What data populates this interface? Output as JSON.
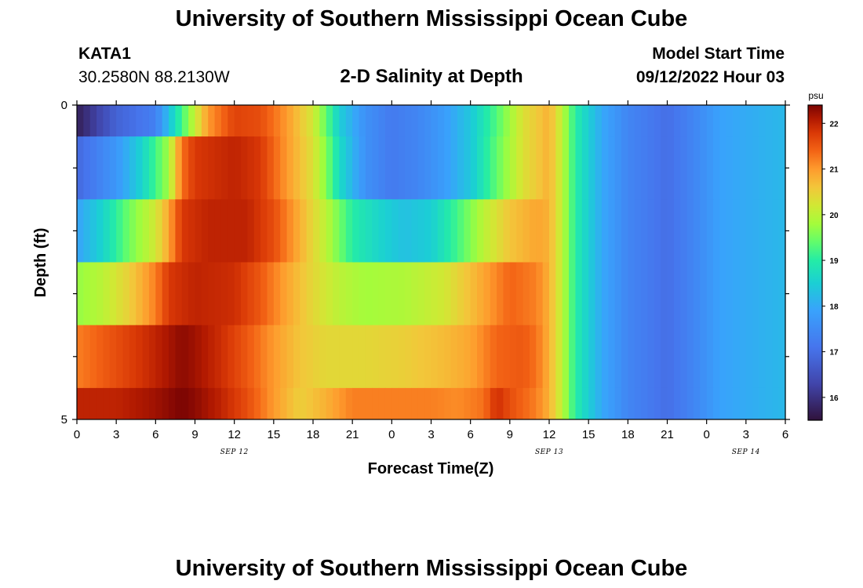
{
  "page": {
    "title_top": "University of Southern Mississippi Ocean Cube",
    "title_bottom": "University of Southern Mississippi Ocean Cube"
  },
  "header": {
    "station_id": "KATA1",
    "coordinates": "30.2580N  88.2130W",
    "plot_title": "2-D Salinity at Depth",
    "model_start_label": "Model Start Time",
    "model_start_value": "09/12/2022 Hour 03"
  },
  "chart_data": {
    "type": "heatmap",
    "title": "2-D Salinity at Depth",
    "xlabel": "Forecast Time(Z)",
    "ylabel": "Depth (ft)",
    "x_unit": "hours since 00Z Sep 12",
    "xlim": [
      0,
      54
    ],
    "ylim": [
      0,
      5
    ],
    "y_reversed": true,
    "x_ticks": [
      0,
      3,
      6,
      9,
      12,
      15,
      18,
      21,
      24,
      27,
      30,
      33,
      36,
      39,
      42,
      45,
      48,
      51,
      54
    ],
    "x_tick_labels": [
      "0",
      "3",
      "6",
      "9",
      "12",
      "15",
      "18",
      "21",
      "0",
      "3",
      "6",
      "9",
      "12",
      "15",
      "18",
      "21",
      "0",
      "3",
      "6"
    ],
    "y_tick_labels": [
      "0",
      "5"
    ],
    "date_labels": [
      {
        "text": "SEP 12",
        "x": 12
      },
      {
        "text": "SEP 13",
        "x": 36
      },
      {
        "text": "SEP 14",
        "x": 51
      }
    ],
    "colorbar": {
      "unit": "psu",
      "min": 15.5,
      "max": 22.4,
      "ticks": [
        "16",
        "17",
        "18",
        "19",
        "20",
        "21",
        "22"
      ],
      "stops": [
        [
          15.5,
          "#30123b"
        ],
        [
          16.3,
          "#4145ab"
        ],
        [
          17.1,
          "#4675ed"
        ],
        [
          17.9,
          "#39a2fc"
        ],
        [
          18.5,
          "#1bcfd4"
        ],
        [
          19.0,
          "#24eca6"
        ],
        [
          19.4,
          "#61fc6c"
        ],
        [
          19.8,
          "#a4fc3b"
        ],
        [
          20.2,
          "#d1e834"
        ],
        [
          20.6,
          "#f3c63a"
        ],
        [
          21.0,
          "#fe9b2d"
        ],
        [
          21.4,
          "#f36315"
        ],
        [
          21.8,
          "#d93806"
        ],
        [
          22.1,
          "#b11901"
        ],
        [
          22.4,
          "#7a0403"
        ]
      ]
    },
    "depth_layers": [
      {
        "depth_top": 0.0,
        "depth_bottom": 0.5,
        "knots": [
          [
            0,
            15.7
          ],
          [
            3,
            16.8
          ],
          [
            6,
            17.3
          ],
          [
            7,
            18.3
          ],
          [
            8,
            19.2
          ],
          [
            9,
            20.1
          ],
          [
            10,
            21.0
          ],
          [
            12,
            21.7
          ],
          [
            14,
            21.6
          ],
          [
            16,
            21.0
          ],
          [
            18,
            20.2
          ],
          [
            19,
            19.4
          ],
          [
            20,
            18.5
          ],
          [
            22,
            17.6
          ],
          [
            24,
            17.2
          ],
          [
            26,
            17.4
          ],
          [
            28,
            17.8
          ],
          [
            30,
            18.4
          ],
          [
            32,
            19.3
          ],
          [
            34,
            20.3
          ],
          [
            36,
            20.8
          ],
          [
            37,
            20.0
          ],
          [
            38,
            19.0
          ],
          [
            40,
            18.0
          ],
          [
            42,
            17.4
          ],
          [
            45,
            17.0
          ],
          [
            47,
            17.4
          ],
          [
            49,
            17.9
          ],
          [
            54,
            18.2
          ]
        ]
      },
      {
        "depth_top": 0.5,
        "depth_bottom": 1.5,
        "knots": [
          [
            0,
            16.9
          ],
          [
            3,
            17.7
          ],
          [
            5,
            18.6
          ],
          [
            6,
            19.2
          ],
          [
            7,
            19.8
          ],
          [
            8,
            21.3
          ],
          [
            9,
            21.8
          ],
          [
            12,
            22.0
          ],
          [
            14,
            21.8
          ],
          [
            16,
            21.0
          ],
          [
            18,
            20.3
          ],
          [
            19,
            19.6
          ],
          [
            20,
            18.7
          ],
          [
            22,
            17.6
          ],
          [
            24,
            17.2
          ],
          [
            26,
            17.4
          ],
          [
            28,
            17.8
          ],
          [
            30,
            18.4
          ],
          [
            32,
            19.4
          ],
          [
            34,
            20.3
          ],
          [
            36,
            20.8
          ],
          [
            37,
            20.0
          ],
          [
            38,
            19.0
          ],
          [
            40,
            18.0
          ],
          [
            42,
            17.4
          ],
          [
            45,
            17.0
          ],
          [
            47,
            17.4
          ],
          [
            49,
            17.9
          ],
          [
            54,
            18.2
          ]
        ]
      },
      {
        "depth_top": 1.5,
        "depth_bottom": 2.5,
        "knots": [
          [
            0,
            17.9
          ],
          [
            2,
            18.6
          ],
          [
            4,
            19.5
          ],
          [
            6,
            20.2
          ],
          [
            7,
            20.9
          ],
          [
            8,
            21.8
          ],
          [
            10,
            22.0
          ],
          [
            13,
            22.0
          ],
          [
            15,
            21.6
          ],
          [
            17,
            20.8
          ],
          [
            19,
            20.0
          ],
          [
            21,
            19.0
          ],
          [
            23,
            18.6
          ],
          [
            25,
            18.3
          ],
          [
            27,
            18.5
          ],
          [
            29,
            19.2
          ],
          [
            31,
            20.0
          ],
          [
            33,
            20.6
          ],
          [
            35,
            20.9
          ],
          [
            36,
            20.8
          ],
          [
            37,
            20.0
          ],
          [
            38,
            19.0
          ],
          [
            40,
            18.0
          ],
          [
            42,
            17.4
          ],
          [
            45,
            17.0
          ],
          [
            47,
            17.4
          ],
          [
            49,
            17.9
          ],
          [
            54,
            18.2
          ]
        ]
      },
      {
        "depth_top": 2.5,
        "depth_bottom": 3.5,
        "knots": [
          [
            0,
            19.7
          ],
          [
            2,
            20.0
          ],
          [
            4,
            20.5
          ],
          [
            6,
            21.2
          ],
          [
            7,
            21.8
          ],
          [
            9,
            22.0
          ],
          [
            12,
            21.9
          ],
          [
            14,
            21.5
          ],
          [
            16,
            20.9
          ],
          [
            18,
            20.4
          ],
          [
            20,
            20.0
          ],
          [
            22,
            19.8
          ],
          [
            25,
            19.9
          ],
          [
            28,
            20.2
          ],
          [
            31,
            20.9
          ],
          [
            33,
            21.4
          ],
          [
            35,
            21.2
          ],
          [
            36,
            20.8
          ],
          [
            37,
            20.0
          ],
          [
            38,
            19.0
          ],
          [
            40,
            18.0
          ],
          [
            42,
            17.4
          ],
          [
            45,
            17.0
          ],
          [
            47,
            17.4
          ],
          [
            49,
            17.9
          ],
          [
            54,
            18.2
          ]
        ]
      },
      {
        "depth_top": 3.5,
        "depth_bottom": 4.5,
        "knots": [
          [
            0,
            21.2
          ],
          [
            3,
            21.6
          ],
          [
            6,
            22.0
          ],
          [
            8,
            22.3
          ],
          [
            9,
            22.2
          ],
          [
            11,
            21.9
          ],
          [
            13,
            21.5
          ],
          [
            15,
            21.0
          ],
          [
            17,
            20.6
          ],
          [
            19,
            20.4
          ],
          [
            22,
            20.4
          ],
          [
            25,
            20.5
          ],
          [
            28,
            20.7
          ],
          [
            30,
            20.9
          ],
          [
            32,
            21.4
          ],
          [
            34,
            21.5
          ],
          [
            35,
            21.3
          ],
          [
            36,
            20.8
          ],
          [
            37,
            20.0
          ],
          [
            38,
            19.0
          ],
          [
            40,
            18.0
          ],
          [
            42,
            17.4
          ],
          [
            45,
            17.0
          ],
          [
            47,
            17.4
          ],
          [
            49,
            17.9
          ],
          [
            54,
            18.2
          ]
        ]
      },
      {
        "depth_top": 4.5,
        "depth_bottom": 5.0,
        "knots": [
          [
            0,
            22.0
          ],
          [
            3,
            22.0
          ],
          [
            6,
            22.2
          ],
          [
            8,
            22.4
          ],
          [
            9,
            22.3
          ],
          [
            11,
            22.0
          ],
          [
            13,
            21.6
          ],
          [
            15,
            21.0
          ],
          [
            17,
            20.5
          ],
          [
            19,
            20.8
          ],
          [
            21,
            21.2
          ],
          [
            24,
            21.2
          ],
          [
            27,
            21.2
          ],
          [
            29,
            21.1
          ],
          [
            31,
            21.3
          ],
          [
            32,
            21.9
          ],
          [
            33,
            21.6
          ],
          [
            35,
            21.2
          ],
          [
            36,
            20.8
          ],
          [
            37,
            20.0
          ],
          [
            38,
            19.0
          ],
          [
            40,
            18.0
          ],
          [
            42,
            17.4
          ],
          [
            45,
            17.0
          ],
          [
            47,
            17.4
          ],
          [
            49,
            17.9
          ],
          [
            54,
            18.2
          ]
        ]
      }
    ]
  }
}
